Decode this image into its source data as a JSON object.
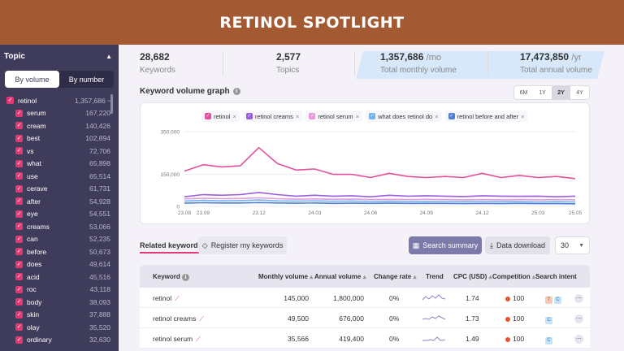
{
  "banner": {
    "title": "RETINOL SPOTLIGHT"
  },
  "sidebar": {
    "title": "Topic",
    "toggle": {
      "by_volume": "By volume",
      "by_number": "By number"
    },
    "root": {
      "name": "retinol",
      "value": "1,357,686",
      "suffix": "~"
    },
    "items": [
      {
        "name": "serum",
        "value": "167,220"
      },
      {
        "name": "cream",
        "value": "140,426"
      },
      {
        "name": "best",
        "value": "102,894"
      },
      {
        "name": "vs",
        "value": "72,706"
      },
      {
        "name": "what",
        "value": "65,898"
      },
      {
        "name": "use",
        "value": "65,514"
      },
      {
        "name": "cerave",
        "value": "61,731"
      },
      {
        "name": "after",
        "value": "54,928"
      },
      {
        "name": "eye",
        "value": "54,551"
      },
      {
        "name": "creams",
        "value": "53,066"
      },
      {
        "name": "can",
        "value": "52,235"
      },
      {
        "name": "before",
        "value": "50,673"
      },
      {
        "name": "does",
        "value": "49,614"
      },
      {
        "name": "acid",
        "value": "45,516"
      },
      {
        "name": "roc",
        "value": "43,118"
      },
      {
        "name": "body",
        "value": "38,093"
      },
      {
        "name": "skin",
        "value": "37,888"
      },
      {
        "name": "olay",
        "value": "35,520"
      },
      {
        "name": "ordinary",
        "value": "32,630"
      }
    ],
    "check_glyph": "✓"
  },
  "stats": {
    "keywords": {
      "value": "28,682",
      "label": "Keywords"
    },
    "topics": {
      "value": "2,577",
      "label": "Topics"
    },
    "monthly": {
      "value": "1,357,686",
      "unit": "/mo",
      "label": "Total monthly volume"
    },
    "annual": {
      "value": "17,473,850",
      "unit": "/yr",
      "label": "Total annual volume"
    }
  },
  "graph": {
    "title": "Keyword volume graph",
    "ranges": [
      "6M",
      "1Y",
      "2Y",
      "4Y"
    ],
    "active_range": "2Y",
    "legend": [
      {
        "name": "retinol",
        "color": "#e54f9c"
      },
      {
        "name": "retinol creams",
        "color": "#9a5ee0"
      },
      {
        "name": "retinol serum",
        "color": "#e79bd9"
      },
      {
        "name": "what does retinol do",
        "color": "#6fb4ee"
      },
      {
        "name": "retinol before and after",
        "color": "#4d7fd8"
      }
    ]
  },
  "chart_data": {
    "type": "line",
    "x": [
      "23.08",
      "23.09",
      "23.10",
      "23.11",
      "23.12",
      "24.01",
      "24.02",
      "24.03",
      "24.04",
      "24.05",
      "24.06",
      "24.07",
      "24.08",
      "24.09",
      "24.10",
      "24.11",
      "24.12",
      "25.01",
      "25.02",
      "25.03",
      "25.04",
      "25.05"
    ],
    "x_tick_labels": [
      "23.08",
      "23.09",
      "23.12",
      "24.03",
      "24.06",
      "24.09",
      "24.12",
      "25.03",
      "25.05"
    ],
    "y_ticks": [
      "350,000",
      "150,000",
      "0"
    ],
    "ylim": [
      0,
      350000
    ],
    "grid": true,
    "series": [
      {
        "name": "retinol",
        "color": "#e54f9c",
        "values": [
          165000,
          195000,
          185000,
          190000,
          275000,
          200000,
          170000,
          175000,
          150000,
          150000,
          135000,
          155000,
          140000,
          135000,
          140000,
          135000,
          155000,
          135000,
          145000,
          135000,
          140000,
          130000
        ]
      },
      {
        "name": "retinol creams",
        "color": "#9a5ee0",
        "values": [
          45000,
          55000,
          52000,
          55000,
          65000,
          55000,
          48000,
          52000,
          48000,
          50000,
          45000,
          52000,
          48000,
          50000,
          48000,
          46000,
          50000,
          48000,
          47000,
          48000,
          45000,
          48000
        ]
      },
      {
        "name": "retinol serum",
        "color": "#e79bd9",
        "values": [
          35000,
          38000,
          36000,
          37000,
          40000,
          36000,
          34000,
          35000,
          33000,
          34000,
          32000,
          33000,
          32000,
          33000,
          32000,
          31000,
          32000,
          31000,
          32000,
          31000,
          32000,
          31000
        ]
      },
      {
        "name": "what does retinol do",
        "color": "#6fb4ee",
        "values": [
          25000,
          28000,
          26000,
          27000,
          30000,
          26000,
          25000,
          26000,
          24000,
          25000,
          23000,
          24000,
          23000,
          22000,
          23000,
          22000,
          23000,
          22000,
          22000,
          21000,
          22000,
          21000
        ]
      },
      {
        "name": "retinol before and after",
        "color": "#4d7fd8",
        "values": [
          15000,
          17000,
          16000,
          16000,
          18000,
          16000,
          15000,
          16000,
          14000,
          15000,
          14000,
          15000,
          14000,
          14000,
          14000,
          13000,
          14000,
          13000,
          14000,
          13000,
          13000,
          12000
        ]
      }
    ]
  },
  "related": {
    "tab": "Related keywords",
    "register": "Register my keywords",
    "summary": "Search summary",
    "download": "Data download",
    "per_page": "30"
  },
  "table": {
    "headers": {
      "keyword": "Keyword",
      "monthly": "Monthly volume",
      "annual": "Annual volume",
      "change": "Change rate",
      "trend": "Trend",
      "cpc": "CPC (USD)",
      "competition": "Competition",
      "intent": "Search intent"
    },
    "rows": [
      {
        "keyword": "retinol",
        "monthly": "145,000",
        "annual": "1,800,000",
        "change": "0%",
        "cpc": "1.74",
        "competition": "100",
        "intents": [
          "T",
          "C"
        ]
      },
      {
        "keyword": "retinol creams",
        "monthly": "49,500",
        "annual": "676,000",
        "change": "0%",
        "cpc": "1.73",
        "competition": "100",
        "intents": [
          "C"
        ]
      },
      {
        "keyword": "retinol serum",
        "monthly": "35,566",
        "annual": "419,400",
        "change": "0%",
        "cpc": "1.49",
        "competition": "100",
        "intents": [
          "C"
        ]
      }
    ]
  }
}
